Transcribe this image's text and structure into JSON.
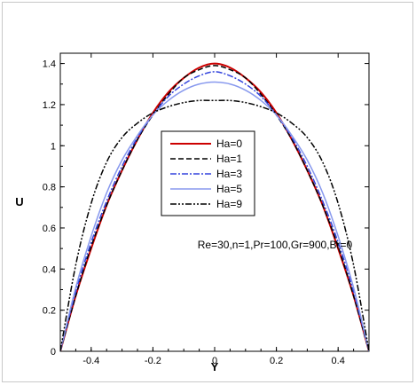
{
  "chart_data": {
    "type": "line",
    "xlabel": "Y",
    "ylabel": "U",
    "xlim": [
      -0.5,
      0.5
    ],
    "ylim": [
      0,
      1.45
    ],
    "x_ticks": [
      -0.4,
      -0.2,
      0,
      0.2,
      0.4
    ],
    "x_tick_labels": [
      "-0.4",
      "-0.2",
      "0",
      "0.2",
      "0.4"
    ],
    "y_ticks": [
      0,
      0.2,
      0.4,
      0.6,
      0.8,
      1,
      1.2,
      1.4
    ],
    "y_tick_labels": [
      "0",
      "0.2",
      "0.4",
      "0.6",
      "0.8",
      "1",
      "1.2",
      "1.4"
    ],
    "grid": false,
    "legend_position": "center",
    "annotation": "Re=30,n=1,Pr=100,Gr=900,Br=0",
    "x": [
      -0.5,
      -0.45,
      -0.4,
      -0.35,
      -0.3,
      -0.25,
      -0.2,
      -0.15,
      -0.1,
      -0.05,
      0,
      0.05,
      0.1,
      0.15,
      0.2,
      0.25,
      0.3,
      0.35,
      0.4,
      0.45,
      0.5
    ],
    "series": [
      {
        "name": "Ha=0",
        "color": "#cc0000",
        "dash": "solid",
        "values": [
          0,
          0.27,
          0.5,
          0.71,
          0.88,
          1.03,
          1.16,
          1.26,
          1.33,
          1.38,
          1.4,
          1.38,
          1.33,
          1.26,
          1.16,
          1.03,
          0.88,
          0.71,
          0.5,
          0.27,
          0
        ]
      },
      {
        "name": "Ha=1",
        "color": "#000000",
        "dash": "dashed",
        "values": [
          0,
          0.27,
          0.51,
          0.71,
          0.88,
          1.03,
          1.15,
          1.25,
          1.33,
          1.37,
          1.39,
          1.37,
          1.33,
          1.25,
          1.15,
          1.03,
          0.88,
          0.71,
          0.51,
          0.27,
          0
        ]
      },
      {
        "name": "Ha=3",
        "color": "#3344dd",
        "dash": "dashdot",
        "values": [
          0,
          0.29,
          0.53,
          0.73,
          0.9,
          1.04,
          1.15,
          1.24,
          1.3,
          1.34,
          1.36,
          1.34,
          1.3,
          1.24,
          1.15,
          1.04,
          0.9,
          0.73,
          0.53,
          0.29,
          0
        ]
      },
      {
        "name": "Ha=5",
        "color": "#8899ee",
        "dash": "solid",
        "values": [
          0,
          0.31,
          0.56,
          0.77,
          0.93,
          1.05,
          1.15,
          1.22,
          1.27,
          1.3,
          1.31,
          1.3,
          1.27,
          1.22,
          1.15,
          1.05,
          0.93,
          0.77,
          0.56,
          0.31,
          0
        ]
      },
      {
        "name": "Ha=9",
        "color": "#000000",
        "dash": "dashdotdot",
        "values": [
          0,
          0.42,
          0.72,
          0.92,
          1.04,
          1.11,
          1.16,
          1.19,
          1.21,
          1.22,
          1.22,
          1.22,
          1.21,
          1.19,
          1.16,
          1.11,
          1.04,
          0.92,
          0.72,
          0.42,
          0
        ]
      }
    ]
  }
}
